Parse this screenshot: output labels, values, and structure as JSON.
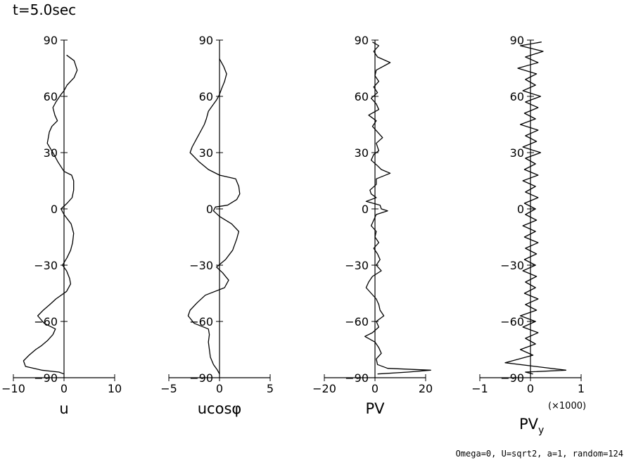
{
  "title": "t=5.0sec",
  "footer": "Omega=0, U=sqrt2, a=1, random=124",
  "chart_data": [
    {
      "type": "line",
      "xlabel": "u",
      "ylabel": "",
      "xlim": [
        -10,
        10
      ],
      "ylim": [
        -90,
        90
      ],
      "xticks": [
        "−10",
        "0",
        "10"
      ],
      "yticks": [
        "90",
        "60",
        "30",
        "0",
        "−30",
        "−60",
        "−90"
      ],
      "series": [
        {
          "x": [
            0.5,
            2.0,
            2.6,
            2.0,
            0.6,
            0.0,
            -0.6,
            -1.6,
            -2.2,
            -1.8,
            -1.3,
            -2.4,
            -2.9,
            -3.1,
            -3.3,
            -2.2,
            -1.2,
            0.0,
            1.5,
            1.9,
            1.9,
            1.6,
            0.6,
            -0.6,
            0.0,
            1.4,
            1.9,
            1.7,
            1.3,
            0.6,
            -0.3,
            0.5,
            1.1,
            1.3,
            0.5,
            -1.6,
            -2.8,
            -4.1,
            -5.2,
            -3.9,
            -1.7,
            -2.2,
            -3.2,
            -4.5,
            -5.6,
            -6.9,
            -8.0,
            -7.6,
            -4.4,
            -1.0,
            0.0
          ],
          "y": [
            82,
            79,
            74,
            70,
            66,
            63,
            61,
            57,
            54,
            50,
            47,
            44,
            41,
            38,
            35,
            30,
            25,
            20,
            18,
            15,
            10,
            6,
            3,
            0,
            -3,
            -8,
            -13,
            -18,
            -22,
            -26,
            -30,
            -33,
            -37,
            -40,
            -44,
            -48,
            -51,
            -54,
            -57,
            -61,
            -64,
            -67,
            -70,
            -73,
            -75,
            -78,
            -81,
            -84,
            -86,
            -87,
            -88
          ]
        }
      ]
    },
    {
      "type": "line",
      "xlabel": "ucosφ",
      "ylabel": "",
      "xlim": [
        -5,
        5
      ],
      "ylim": [
        -90,
        90
      ],
      "xticks": [
        "−5",
        "0",
        "5"
      ],
      "yticks": [
        "90",
        "60",
        "30",
        "0",
        "−30",
        "−60",
        "−90"
      ],
      "series": [
        {
          "x": [
            0.0,
            0.4,
            0.7,
            0.5,
            0.2,
            0.0,
            -0.3,
            -0.7,
            -1.1,
            -1.3,
            -1.5,
            -1.8,
            -2.2,
            -2.7,
            -2.9,
            -2.0,
            -1.1,
            0.0,
            1.6,
            1.9,
            2.0,
            1.7,
            0.8,
            -0.4,
            -0.6,
            0.0,
            1.2,
            1.9,
            1.7,
            1.3,
            0.6,
            -0.3,
            0.3,
            0.9,
            0.5,
            -1.4,
            -2.2,
            -2.9,
            -3.1,
            -2.5,
            -1.1,
            -1.0,
            -1.1,
            -1.0,
            -0.9,
            -0.6,
            -0.2,
            0.0
          ],
          "y": [
            80,
            76,
            72,
            68,
            64,
            61,
            58,
            55,
            52,
            48,
            45,
            42,
            38,
            33,
            30,
            25,
            21,
            18,
            16,
            12,
            8,
            5,
            2,
            1,
            -1,
            -4,
            -8,
            -12,
            -16,
            -22,
            -27,
            -31,
            -34,
            -38,
            -42,
            -46,
            -50,
            -54,
            -57,
            -61,
            -64,
            -67,
            -71,
            -75,
            -79,
            -83,
            -86,
            -88
          ]
        }
      ]
    },
    {
      "type": "line",
      "xlabel": "PV",
      "ylabel": "",
      "xlim": [
        -20,
        20
      ],
      "ylim": [
        -90,
        90
      ],
      "xticks": [
        "−20",
        "0",
        "20"
      ],
      "yticks": [
        "90",
        "60",
        "30",
        "0",
        "−30",
        "−60",
        "−90"
      ],
      "series": [
        {
          "x": [
            -1.0,
            1.5,
            -0.5,
            1.0,
            6.0,
            0.5,
            0.0,
            1.5,
            -0.5,
            1.0,
            -1.5,
            0.5,
            1.5,
            -2.5,
            0.5,
            -1.0,
            1.0,
            3.0,
            0.5,
            1.5,
            -0.5,
            -1.5,
            1.0,
            2.5,
            6.0,
            0.5,
            0.5,
            -2.0,
            -1.5,
            0.5,
            -3.5,
            2.0,
            2.5,
            5.0,
            0.5,
            -0.5,
            -1.5,
            0.5,
            0.0,
            1.5,
            -0.5,
            1.0,
            2.0,
            0.5,
            2.5,
            -1.0,
            -2.5,
            -3.5,
            -1.5,
            0.5,
            1.5,
            2.0,
            3.5,
            0.5,
            1.5,
            -1.0,
            -4.0,
            0.0,
            1.5,
            2.5,
            0.5,
            1.0,
            5.0,
            22.0,
            13.0,
            1.0
          ],
          "y": [
            89,
            87,
            84,
            81,
            78,
            74,
            71,
            68,
            65,
            62,
            59,
            56,
            53,
            50,
            47,
            44,
            41,
            38,
            35,
            31,
            29,
            26,
            23,
            21,
            19,
            16,
            13,
            10,
            8,
            6,
            4,
            2,
            0,
            -1,
            -3,
            -6,
            -9,
            -12,
            -15,
            -18,
            -21,
            -24,
            -27,
            -30,
            -33,
            -36,
            -39,
            -42,
            -45,
            -48,
            -51,
            -54,
            -57,
            -60,
            -63,
            -66,
            -68,
            -71,
            -74,
            -77,
            -80,
            -83,
            -85,
            -86,
            -87,
            -88
          ]
        }
      ]
    },
    {
      "type": "line",
      "xlabel": "PVy",
      "ylabel": "",
      "xlim": [
        -1,
        1
      ],
      "ylim": [
        -90,
        90
      ],
      "xticks": [
        "−1",
        "0",
        "1"
      ],
      "yticks": [
        "90",
        "60",
        "30",
        "0",
        "−30",
        "−60",
        "−90"
      ],
      "scale_note": "(×1000)",
      "series": [
        {
          "x": [
            0.22,
            -0.2,
            0.25,
            -0.1,
            0.15,
            -0.25,
            0.12,
            -0.1,
            0.1,
            -0.15,
            0.2,
            -0.1,
            0.15,
            -0.12,
            0.1,
            -0.2,
            0.15,
            -0.1,
            0.12,
            -0.15,
            0.2,
            -0.1,
            0.1,
            -0.12,
            0.15,
            -0.15,
            0.1,
            -0.1,
            0.15,
            -0.12,
            0.1,
            -0.1,
            0.12,
            -0.15,
            0.1,
            -0.12,
            0.15,
            -0.1,
            0.12,
            -0.12,
            0.1,
            -0.15,
            0.12,
            -0.1,
            0.1,
            -0.12,
            0.15,
            -0.1,
            0.12,
            -0.2,
            0.1,
            -0.15,
            0.15,
            -0.1,
            0.1,
            -0.2,
            0.05,
            -0.5,
            0.1,
            0.7,
            -0.1,
            0.05
          ],
          "y": [
            89,
            87,
            84,
            81,
            78,
            75,
            72,
            69,
            66,
            63,
            60,
            57,
            54,
            51,
            48,
            45,
            42,
            39,
            36,
            33,
            30,
            27,
            24,
            21,
            18,
            15,
            12,
            9,
            6,
            3,
            0,
            -3,
            -6,
            -9,
            -12,
            -15,
            -18,
            -21,
            -24,
            -27,
            -30,
            -33,
            -36,
            -39,
            -42,
            -45,
            -48,
            -51,
            -54,
            -57,
            -60,
            -63,
            -66,
            -69,
            -72,
            -75,
            -78,
            -82,
            -84,
            -86,
            -87,
            -88
          ]
        }
      ]
    }
  ]
}
